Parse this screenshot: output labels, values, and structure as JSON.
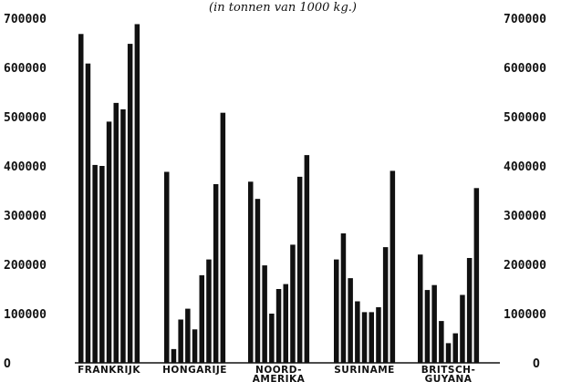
{
  "chart_data": {
    "type": "bar",
    "subtitle": "(in tonnen van 1000 kg.)",
    "ylim": [
      0,
      700000
    ],
    "yticks": [
      0,
      100000,
      200000,
      300000,
      400000,
      500000,
      600000,
      700000
    ],
    "ytick_labels": [
      "O",
      "100000",
      "200000",
      "300000",
      "400000",
      "500000",
      "600000",
      "700000"
    ],
    "grid": false,
    "categories": [
      {
        "lines": [
          "FRANKRIJK"
        ],
        "values": [
          668000,
          608000,
          402000,
          400000,
          490000,
          528000,
          515000,
          648000,
          688000
        ]
      },
      {
        "lines": [
          "HONGARIJE"
        ],
        "values": [
          388000,
          28000,
          88000,
          110000,
          68000,
          178000,
          210000,
          363000,
          508000
        ]
      },
      {
        "lines": [
          "NOORD-",
          "AMERIKA"
        ],
        "values": [
          368000,
          333000,
          198000,
          100000,
          150000,
          160000,
          240000,
          378000,
          422000
        ]
      },
      {
        "lines": [
          "SURINAME"
        ],
        "values": [
          210000,
          263000,
          172000,
          125000,
          103000,
          103000,
          113000,
          235000,
          390000
        ]
      },
      {
        "lines": [
          "BRITSCH-",
          "GUYANA"
        ],
        "values": [
          220000,
          148000,
          158000,
          85000,
          40000,
          60000,
          138000,
          213000,
          355000
        ]
      }
    ]
  }
}
